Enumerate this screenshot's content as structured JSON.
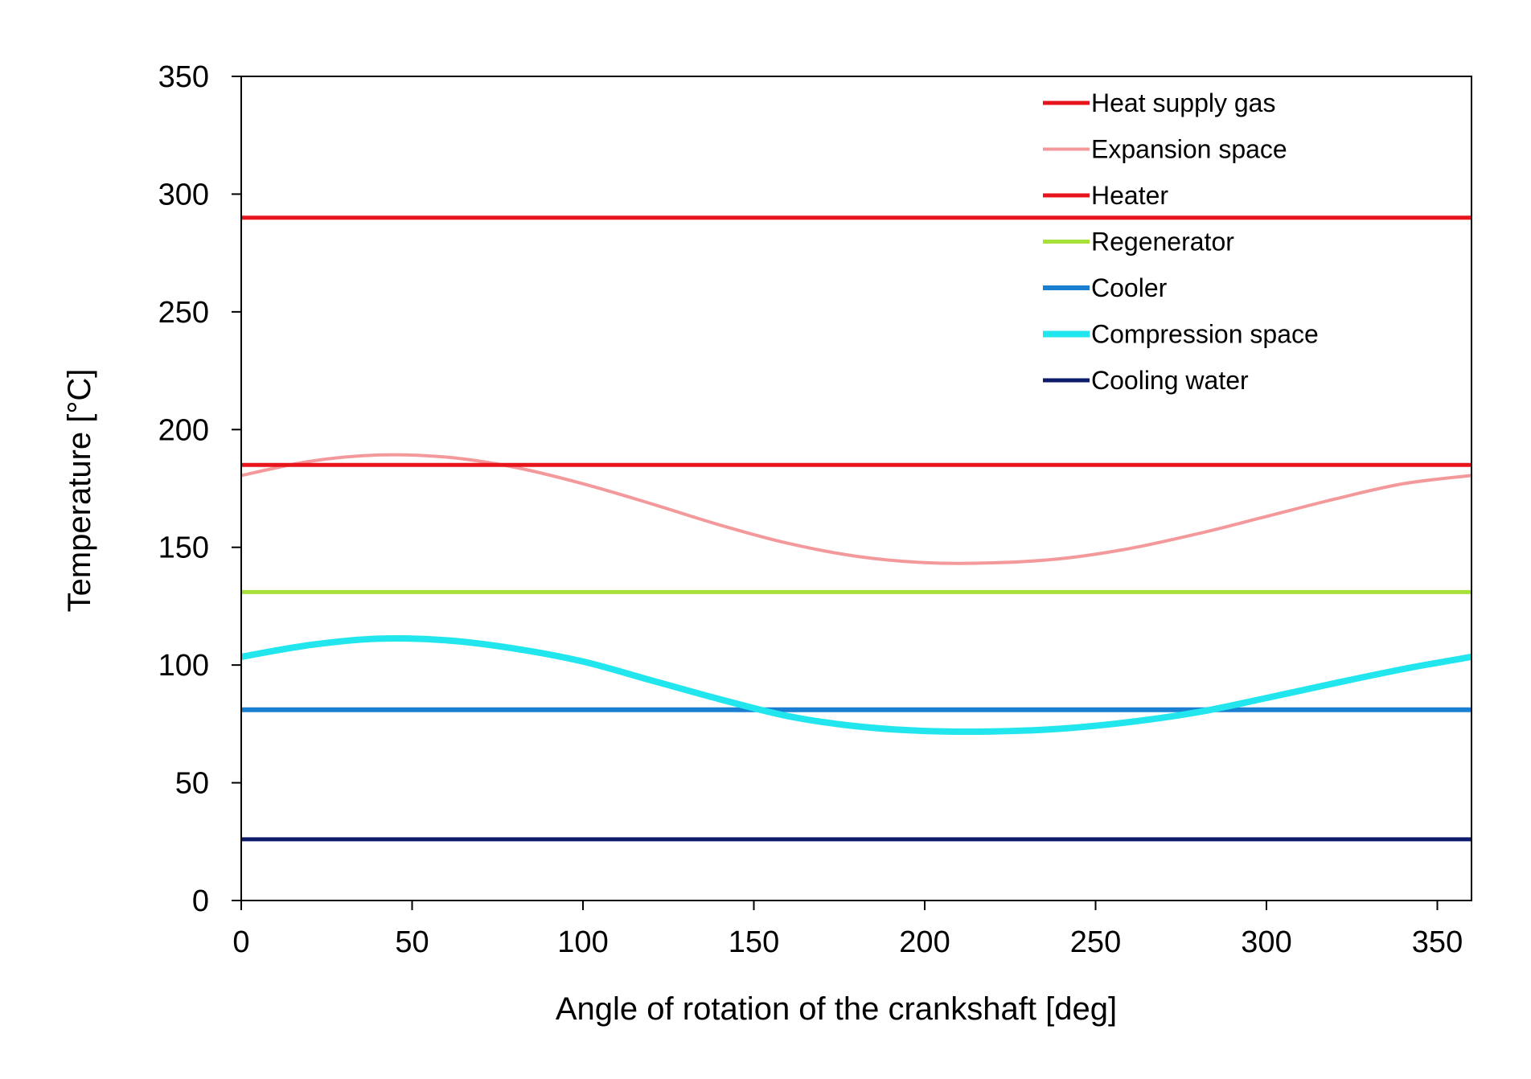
{
  "chart_data": {
    "type": "line",
    "title": "",
    "xlabel": "Angle of rotation of the crankshaft [deg]",
    "ylabel": "Temperature [°C]",
    "xlim": [
      0,
      360
    ],
    "ylim": [
      0,
      350
    ],
    "x_ticks": [
      0,
      50,
      100,
      150,
      200,
      250,
      300,
      350
    ],
    "y_ticks": [
      0,
      50,
      100,
      150,
      200,
      250,
      300,
      350
    ],
    "grid": false,
    "legend_position": "top-right",
    "series": [
      {
        "name": "Heat supply gas",
        "color": "#e8141c",
        "x": [
          0,
          360
        ],
        "values": [
          290,
          290
        ]
      },
      {
        "name": "Expansion space",
        "color": "#f4999b",
        "x": [
          0,
          20,
          40,
          60,
          80,
          100,
          120,
          140,
          160,
          180,
          200,
          220,
          240,
          260,
          280,
          300,
          320,
          340,
          360
        ],
        "values": [
          180.5,
          186.5,
          189.2,
          188.3,
          184.0,
          177.0,
          168.5,
          159.5,
          151.7,
          146.2,
          143.5,
          143.4,
          145.2,
          149.5,
          155.8,
          163.1,
          170.5,
          177.0,
          180.5
        ]
      },
      {
        "name": "Heater",
        "color": "#e8141c",
        "x": [
          0,
          360
        ],
        "values": [
          185,
          185
        ]
      },
      {
        "name": "Regenerator",
        "color": "#a8e03a",
        "x": [
          0,
          360
        ],
        "values": [
          131,
          131
        ]
      },
      {
        "name": "Cooler",
        "color": "#1a7fd0",
        "x": [
          0,
          360
        ],
        "values": [
          81,
          81
        ]
      },
      {
        "name": "Compression space",
        "color": "#22e6ee",
        "x": [
          0,
          20,
          40,
          60,
          80,
          100,
          120,
          140,
          160,
          180,
          200,
          220,
          240,
          260,
          280,
          300,
          320,
          340,
          360
        ],
        "values": [
          103.5,
          108.5,
          111.2,
          110.5,
          107.0,
          101.5,
          93.5,
          85.5,
          78.3,
          74.0,
          72.0,
          71.8,
          73.0,
          75.8,
          80.0,
          86.0,
          92.3,
          98.3,
          103.5
        ]
      },
      {
        "name": "Cooling water",
        "color": "#0d1b6b",
        "x": [
          0,
          360
        ],
        "values": [
          26,
          26
        ]
      }
    ]
  }
}
